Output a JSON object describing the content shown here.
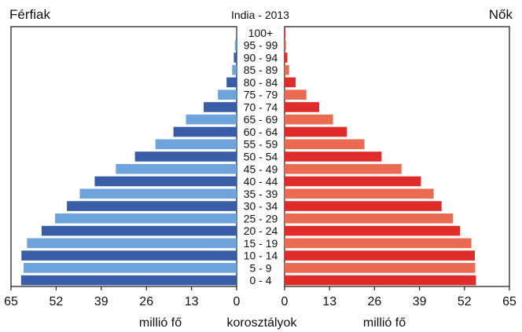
{
  "chart_data": {
    "type": "bar",
    "orientation": "horizontal",
    "title": "India - 2013",
    "left_label": "Férfiak",
    "right_label": "Nők",
    "center_axis_label": "korosztályok",
    "left_unit_label": "millió fő",
    "right_unit_label": "millió fő",
    "categories": [
      "100+",
      "95 - 99",
      "90 - 94",
      "85 - 89",
      "80 - 84",
      "75 - 79",
      "70 - 74",
      "65 - 69",
      "60 - 64",
      "55 - 59",
      "50 - 54",
      "45 - 49",
      "40 - 44",
      "35 - 39",
      "30 - 34",
      "25 - 29",
      "20 - 24",
      "15 - 19",
      "10 - 14",
      "5 - 9",
      "0 - 4"
    ],
    "left_ticks": [
      "65",
      "52",
      "39",
      "26",
      "13",
      "0"
    ],
    "right_ticks": [
      "0",
      "13",
      "26",
      "39",
      "52",
      "65"
    ],
    "xlim": [
      0,
      65
    ],
    "series": [
      {
        "name": "Férfiak",
        "values": [
          0.1,
          0.5,
          0.8,
          1.3,
          2.9,
          5.4,
          9.5,
          14.6,
          18.2,
          23.4,
          29.3,
          34.8,
          40.9,
          45.2,
          48.9,
          52.3,
          56.2,
          60.4,
          62.0,
          61.4,
          62.1
        ],
        "colors": [
          "#3a5da7",
          "#6ea4db"
        ]
      },
      {
        "name": "Nők",
        "values": [
          0.2,
          0.4,
          0.8,
          1.3,
          3.2,
          6.3,
          10.0,
          14.0,
          18.0,
          23.1,
          28.0,
          33.8,
          39.4,
          43.1,
          45.4,
          48.7,
          50.7,
          54.0,
          55.0,
          55.1,
          55.3
        ],
        "colors": [
          "#e02b2b",
          "#ea6a52"
        ]
      }
    ],
    "grid": false
  }
}
